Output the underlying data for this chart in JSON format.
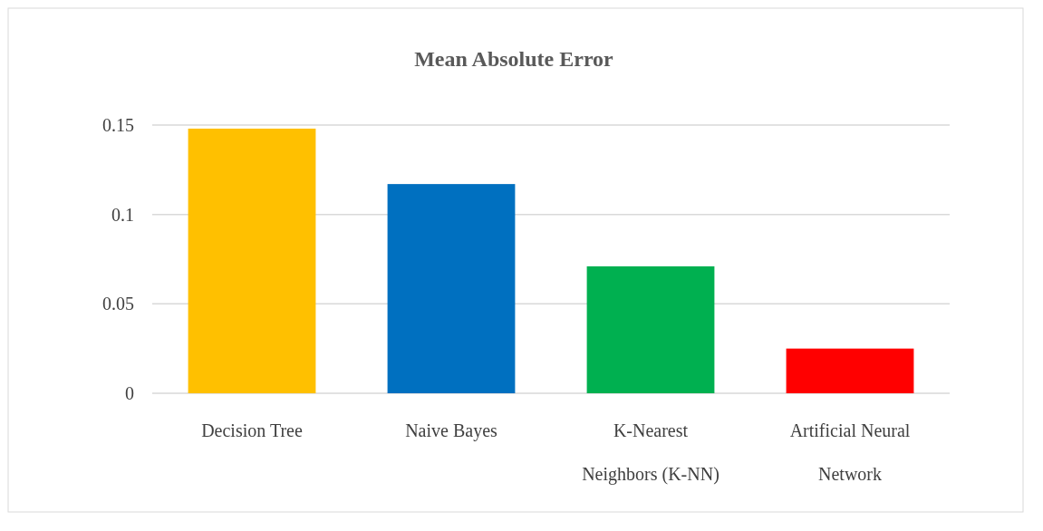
{
  "chart_data": {
    "type": "bar",
    "title": "Mean Absolute Error",
    "categories": [
      "Decision Tree",
      "Naive Bayes",
      "K-Nearest Neighbors (K-NN)",
      "Artificial Neural Network"
    ],
    "values": [
      0.148,
      0.117,
      0.071,
      0.025
    ],
    "colors": [
      "#ffc000",
      "#0070c0",
      "#00b050",
      "#ff0000"
    ],
    "ylim": [
      0,
      0.15
    ],
    "yticks": [
      0,
      0.05,
      0.1,
      0.15
    ],
    "grid": "y"
  }
}
